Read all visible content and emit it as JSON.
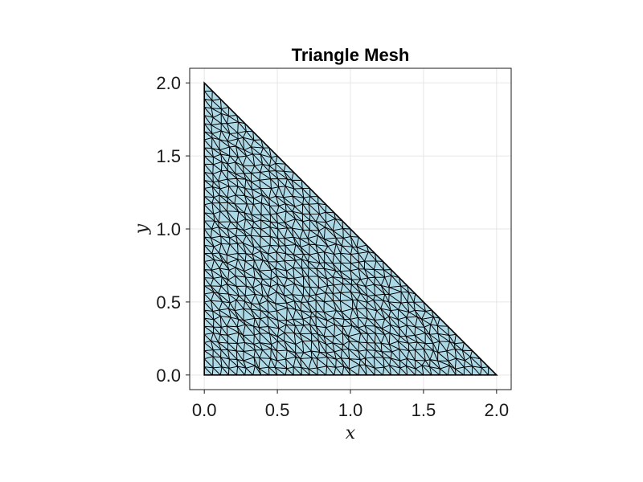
{
  "chart_data": {
    "type": "mesh",
    "title": "Triangle Mesh",
    "xlabel": "x",
    "ylabel": "y",
    "xlim": [
      -0.1,
      2.1
    ],
    "ylim": [
      -0.1,
      2.1
    ],
    "x_ticks": [
      "0.0",
      "0.5",
      "1.0",
      "1.5",
      "2.0"
    ],
    "y_ticks": [
      "0.0",
      "0.5",
      "1.0",
      "1.5",
      "2.0"
    ],
    "x_tick_values": [
      0.0,
      0.5,
      1.0,
      1.5,
      2.0
    ],
    "y_tick_values": [
      0.0,
      0.5,
      1.0,
      1.5,
      2.0
    ],
    "domain_vertices": [
      [
        0,
        0
      ],
      [
        2,
        0
      ],
      [
        0,
        2
      ]
    ],
    "mesh_resolution": 36,
    "grid": true,
    "colors": {
      "fill": "#add8e6",
      "edge": "#000000",
      "grid": "#e6e6e6",
      "frame": "#1a1a1a"
    }
  }
}
